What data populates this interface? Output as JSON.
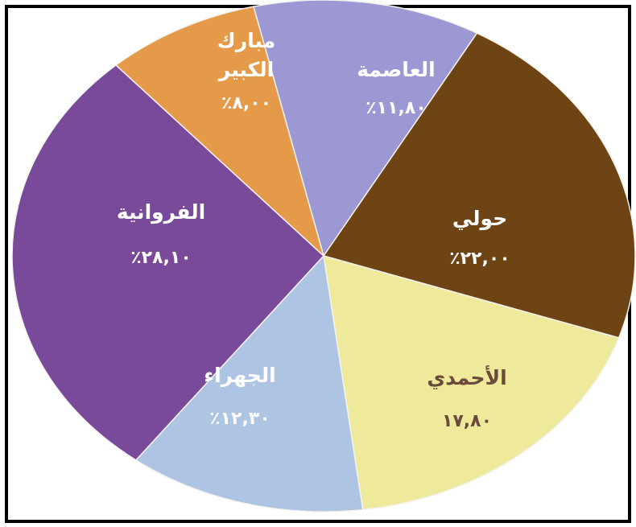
{
  "chart_data": {
    "type": "pie",
    "slices": [
      {
        "name": "العاصمة",
        "value": 11.8,
        "display": "٪١١,٨٠",
        "color": "#9b98d4",
        "text_color": "#ffffff"
      },
      {
        "name": "حولي",
        "value": 22.0,
        "display": "٪٢٢,٠٠",
        "color": "#6e4414",
        "text_color": "#ffffff"
      },
      {
        "name": "الأحمدي",
        "value": 17.8,
        "display": "١٧,٨٠",
        "color": "#efe99b",
        "text_color": "#6a4a3a"
      },
      {
        "name": "الجهراء",
        "value": 12.3,
        "display": "٪١٢,٣٠",
        "color": "#adc4e2",
        "text_color": "#ffffff"
      },
      {
        "name": "الفروانية",
        "value": 28.1,
        "display": "٪٢٨,١٠",
        "color": "#7a4a9a",
        "text_color": "#ffffff"
      },
      {
        "name": "مبارك الكبير",
        "value": 8.0,
        "display": "٪٨,٠٠",
        "color": "#e59a49",
        "text_color": "#ffffff"
      }
    ]
  }
}
